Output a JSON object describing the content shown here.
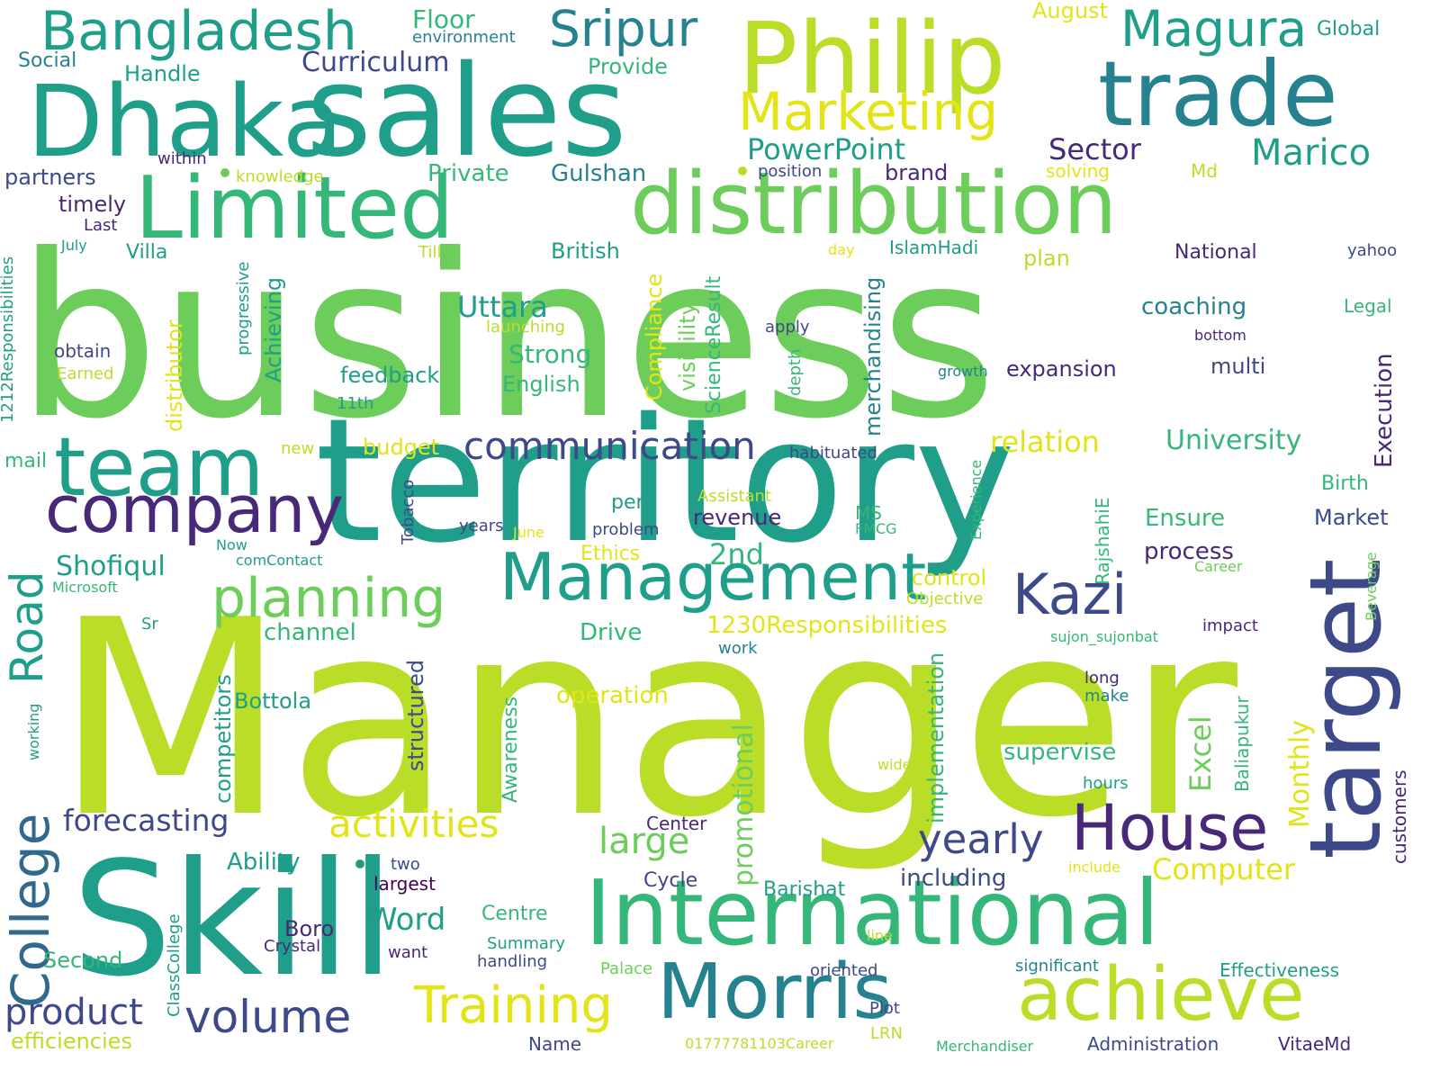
{
  "palette": {
    "lime": "#bade28",
    "green": "#6ccd5a",
    "mint": "#35b779",
    "teal": "#1f9e89",
    "cyan": "#26828e",
    "blue": "#31688e",
    "slate": "#3e4989",
    "purple": "#482878",
    "dark": "#440154",
    "yellow": "#e2e418",
    "background": "#ffffff"
  },
  "words": [
    "business",
    "Manager",
    "territory",
    "Skill",
    "sales",
    "Dhaka",
    "Philip",
    "International",
    "distribution",
    "Limited",
    "trade",
    "team",
    "company",
    "Management",
    "Morris",
    "achieve",
    "target",
    "House",
    "Kazi",
    "Marketing",
    "Bangladesh",
    "Sripur",
    "Magura",
    "planning",
    "communication",
    "activities",
    "College",
    "Road",
    "volume",
    "Training",
    "product",
    "forecasting",
    "yearly",
    "large",
    "Word",
    "Computer",
    "Marico",
    "PowerPoint",
    "Sector",
    "Curriculum",
    "Floor",
    "Handle",
    "Provide",
    "Private",
    "Gulshan",
    "partners",
    "timely",
    "Villa",
    "Uttara",
    "Strong",
    "feedback",
    "English",
    "expansion",
    "relation",
    "University",
    "coaching",
    "Legal",
    "apply",
    "bottom",
    "growth",
    "multi",
    "Execution",
    "Shofiqul",
    "2nd",
    "revenue",
    "process",
    "Market",
    "Ensure",
    "Birth",
    "Effectiveness",
    "Administration",
    "VitaeMd",
    "Merchandiser",
    "Name",
    "efficiencies",
    "Second",
    "Boro",
    "Crystal",
    "want",
    "Centre",
    "Summary",
    "handling",
    "Palace",
    "oriented",
    "significant",
    "Plot",
    "LRN",
    "01777781103Career",
    "line",
    "include",
    "Barishat",
    "Cycle",
    "including",
    "Center",
    "supervise",
    "Excel",
    "Monthly",
    "promotional",
    "operation",
    "Drive",
    "channel",
    "Bottola",
    "Ability",
    "largest",
    "two",
    "Awareness",
    "structured",
    "implementation",
    "Baliapukur",
    "customers",
    "hours",
    "make",
    "long",
    "wide",
    "work",
    "sujon_sujonbat",
    "impact",
    "Beverage",
    "Career",
    "Objective",
    "control",
    "1230Responsibilities",
    "Ethics",
    "per",
    "problem",
    "years",
    "June",
    "Assistant",
    "MS",
    "FMCG",
    "Experience",
    "RajshahiE",
    "habituated",
    "budget",
    "new",
    "mail",
    "comContact",
    "Microsoft",
    "Now",
    "Sr",
    "working",
    "ClassCollege",
    "competitors",
    "Tobacco",
    "distributor",
    "progressive",
    "Achieving",
    "Compliance",
    "visibility",
    "ScienceResult",
    "depth",
    "merchandising",
    "IslamHadi",
    "plan",
    "Till",
    "day",
    "National",
    "yahoo",
    "British",
    "Md",
    "solving",
    "brand",
    "position",
    "knowledge",
    "within",
    "Last",
    "July",
    "obtain",
    "Earned",
    "11th",
    "launching",
    "Global",
    "environment",
    "Social",
    "August",
    "1212Responsibilities"
  ]
}
